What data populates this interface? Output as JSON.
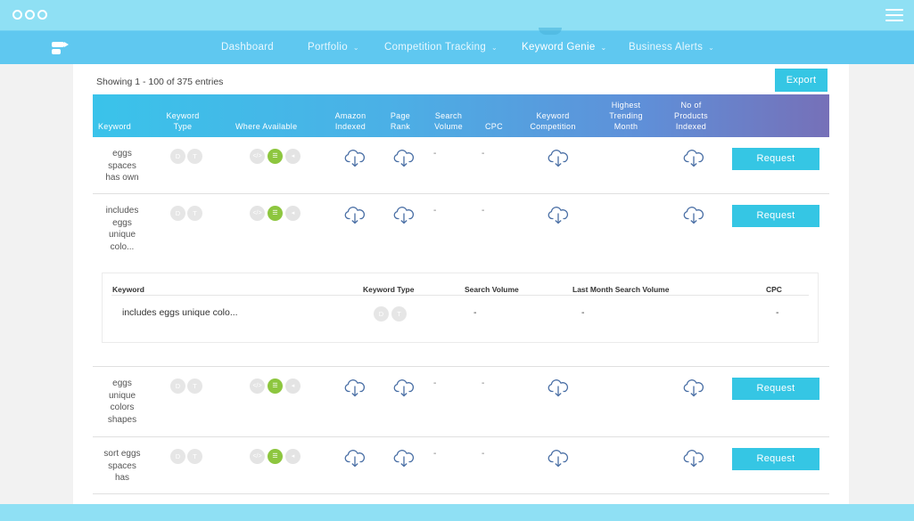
{
  "window": {
    "dots": 3
  },
  "nav": {
    "items": [
      {
        "label": "Dashboard",
        "caret": ""
      },
      {
        "label": "Portfolio",
        "caret": "⌄"
      },
      {
        "label": "Competition Tracking",
        "caret": "⌄"
      },
      {
        "label": "Keyword Genie",
        "caret": "⌄"
      },
      {
        "label": "Business Alerts",
        "caret": "⌄"
      }
    ],
    "active": "Keyword Genie"
  },
  "table": {
    "showing": "Showing 1 - 100 of 375 entries",
    "export_label": "Export",
    "headers": {
      "keyword": "Keyword",
      "keyword_type": [
        "Keyword",
        "Type"
      ],
      "where_available": "Where Available",
      "amazon_indexed": [
        "Amazon",
        "Indexed"
      ],
      "page_rank": [
        "Page",
        "Rank"
      ],
      "search_volume": [
        "Search",
        "Volume"
      ],
      "cpc": "CPC",
      "keyword_competition": [
        "Keyword",
        "Competition"
      ],
      "highest_trending": [
        "Highest",
        "Trending",
        "Month"
      ],
      "no_of_products": [
        "No of",
        "Products",
        "Indexed"
      ]
    },
    "type_badges": [
      "D",
      "T"
    ],
    "rows": [
      {
        "keyword": [
          "eggs",
          "spaces",
          "has own"
        ],
        "search_volume": "-",
        "cpc": "-",
        "action": "Request"
      },
      {
        "keyword": [
          "includes",
          "eggs",
          "unique",
          "colo..."
        ],
        "search_volume": "-",
        "cpc": "-",
        "action": "Request"
      },
      {
        "keyword": [
          "eggs",
          "unique",
          "colors",
          "shapes"
        ],
        "search_volume": "-",
        "cpc": "-",
        "action": "Request"
      },
      {
        "keyword": [
          "sort eggs",
          "spaces",
          "has"
        ],
        "search_volume": "-",
        "cpc": "-",
        "action": "Request"
      }
    ],
    "detail": {
      "headers": [
        "Keyword",
        "Keyword Type",
        "Search Volume",
        "Last Month Search Volume",
        "CPC"
      ],
      "keyword": "includes eggs unique colo...",
      "search_volume": "-",
      "last_month_search_volume": "-",
      "cpc": "-"
    }
  },
  "icons": {
    "where_available": [
      "code-icon",
      "list-icon",
      "megaphone-icon"
    ],
    "cloud": "cloud-download-icon",
    "menu": "hamburger-menu-icon"
  },
  "colors": {
    "chrome": "#8fe0f4",
    "nav": "#5fc8f0",
    "accent_button": "#35c6e4",
    "available_green": "#8dc63f",
    "header_gradient_start": "#3ac3ea",
    "header_gradient_end": "#7670b8"
  }
}
